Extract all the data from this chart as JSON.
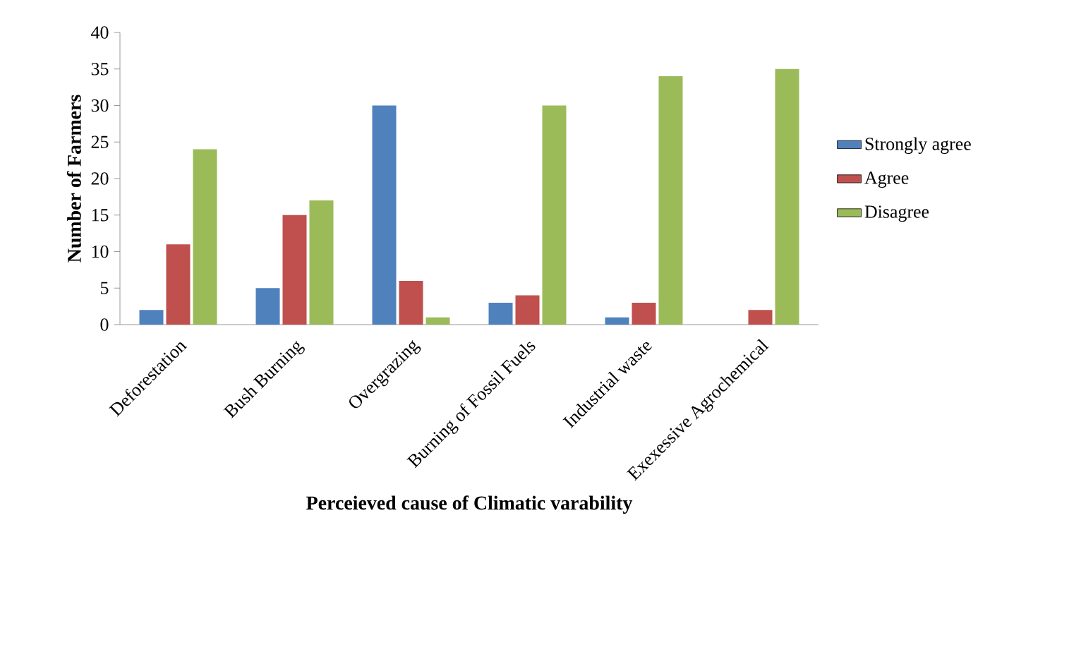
{
  "chart_data": {
    "type": "bar",
    "xlabel": "Perceieved cause of Climatic varability",
    "ylabel": "Number of Farmers",
    "categories": [
      "Deforestation",
      "Bush Burning",
      "Overgrazing",
      "Burning of Fossil Fuels",
      "Industrial waste",
      "Exexessive Agrochemical"
    ],
    "series": [
      {
        "name": "Strongly agree",
        "color": "#4f81bd",
        "values": [
          2,
          5,
          30,
          3,
          1,
          0
        ]
      },
      {
        "name": "Agree",
        "color": "#c0504d",
        "values": [
          11,
          15,
          6,
          4,
          3,
          2
        ]
      },
      {
        "name": "Disagree",
        "color": "#9bbb59",
        "values": [
          24,
          17,
          1,
          30,
          34,
          35
        ]
      }
    ],
    "ylim": [
      0,
      40
    ],
    "yticks": [
      0,
      5,
      10,
      15,
      20,
      25,
      30,
      35,
      40
    ],
    "grid": false,
    "legend": "right"
  }
}
